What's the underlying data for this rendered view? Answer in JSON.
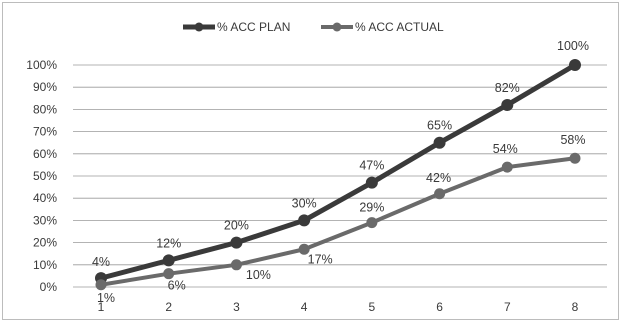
{
  "chart_data": {
    "type": "line",
    "title": "",
    "xlabel": "",
    "ylabel": "",
    "x": [
      1,
      2,
      3,
      4,
      5,
      6,
      7,
      8
    ],
    "x_tick_labels": [
      "1",
      "2",
      "3",
      "4",
      "5",
      "6",
      "7",
      "8"
    ],
    "y_tick_labels": [
      "0%",
      "10%",
      "20%",
      "30%",
      "40%",
      "50%",
      "60%",
      "70%",
      "80%",
      "90%",
      "100%"
    ],
    "ylim": [
      0,
      100
    ],
    "grid": true,
    "legend_position": "top",
    "series": [
      {
        "name": "% ACC PLAN",
        "color": "#3a3a3a",
        "values": [
          4,
          12,
          20,
          30,
          47,
          65,
          82,
          100
        ],
        "data_labels": [
          "4%",
          "12%",
          "20%",
          "30%",
          "47%",
          "65%",
          "82%",
          "100%"
        ]
      },
      {
        "name": "% ACC ACTUAL",
        "color": "#6a6a6a",
        "values": [
          1,
          6,
          10,
          17,
          29,
          42,
          54,
          58
        ],
        "data_labels": [
          "1%",
          "6%",
          "10%",
          "17%",
          "29%",
          "42%",
          "54%",
          "58%"
        ]
      }
    ]
  }
}
